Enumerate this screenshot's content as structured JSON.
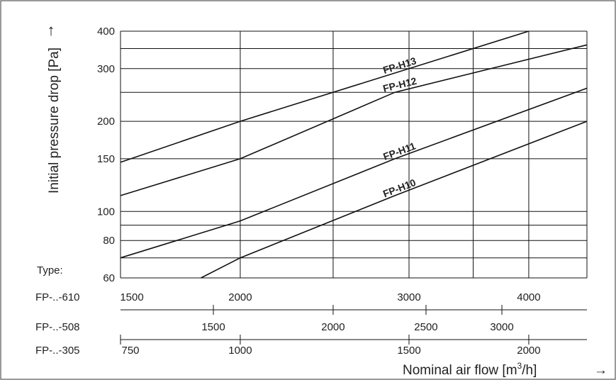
{
  "chart_data": {
    "type": "line",
    "y_axis": {
      "label": "Initial pressure drop [Pa]",
      "arrow": "↑",
      "scale": "log",
      "range": [
        60,
        400
      ],
      "ticks": [
        60,
        80,
        100,
        150,
        200,
        300,
        400
      ],
      "tick_labels": [
        "60",
        "80",
        "100",
        "150",
        "200",
        "300",
        "400"
      ],
      "grid": [
        60,
        70,
        80,
        90,
        100,
        150,
        200,
        250,
        300,
        350,
        400
      ]
    },
    "x_axis": {
      "label_prefix": "Nominal air flow [m",
      "label_sup": "3",
      "label_suffix": "/h]",
      "arrow": "→",
      "scale": "log",
      "reference_scale": "FP-..-610",
      "range": [
        1500,
        4600
      ],
      "grid": [
        1500,
        2000,
        2500,
        3000,
        3500,
        4000
      ]
    },
    "type_label": "Type:",
    "scales": [
      {
        "type": "FP-..-610",
        "factor": 1,
        "ticks": [
          1500,
          2000,
          3000,
          4000
        ],
        "tick_labels": [
          "1500",
          "2000",
          "3000",
          "4000"
        ]
      },
      {
        "type": "FP-..-508",
        "factor": 1.25,
        "ticks": [
          1500,
          2000,
          2500,
          3000
        ],
        "tick_labels": [
          "1500",
          "2000",
          "2500",
          "3000"
        ]
      },
      {
        "type": "FP-..-305",
        "factor": 2,
        "ticks": [
          750,
          1000,
          1500,
          2000
        ],
        "tick_labels": [
          "750",
          "1000",
          "1500",
          "2000"
        ]
      }
    ],
    "series": [
      {
        "name": "FP-H13",
        "points": [
          [
            1500,
            146
          ],
          [
            2000,
            200
          ],
          [
            4000,
            400
          ]
        ]
      },
      {
        "name": "FP-H12",
        "points": [
          [
            1500,
            113
          ],
          [
            2000,
            150
          ],
          [
            2900,
            250
          ],
          [
            4600,
            360
          ]
        ]
      },
      {
        "name": "FP-H11",
        "points": [
          [
            1500,
            70
          ],
          [
            2000,
            93
          ],
          [
            2900,
            150
          ],
          [
            4600,
            258
          ]
        ]
      },
      {
        "name": "FP-H10",
        "points": [
          [
            1820,
            60
          ],
          [
            2000,
            70
          ],
          [
            2900,
            113
          ],
          [
            4600,
            200
          ]
        ]
      }
    ],
    "grid": true,
    "legend": "labels on lines"
  }
}
